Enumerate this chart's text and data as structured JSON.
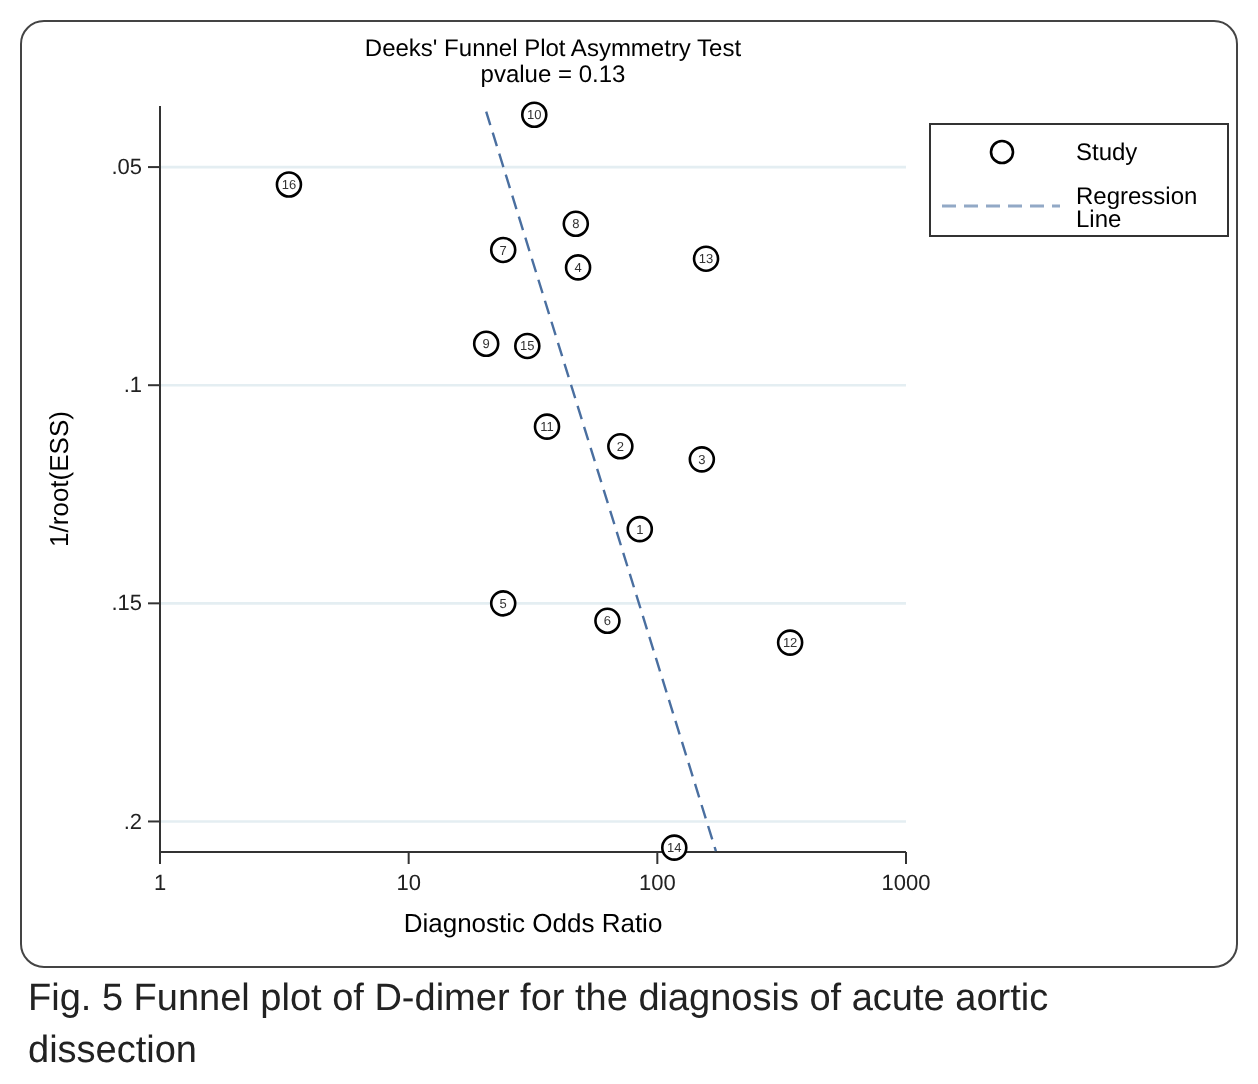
{
  "chart_data": {
    "type": "scatter",
    "title": "Deeks' Funnel Plot Asymmetry Test",
    "subtitle": "pvalue =  0.13",
    "xlabel": "Diagnostic Odds Ratio",
    "ylabel": "1/root(ESS)",
    "log": "x",
    "xlim": [
      1,
      1000
    ],
    "xticks": [
      1,
      10,
      100,
      1000
    ],
    "ylim": [
      0.207,
      0.036
    ],
    "yticks": [
      {
        "value": 0.05,
        "label": ".05"
      },
      {
        "value": 0.1,
        "label": ".1"
      },
      {
        "value": 0.15,
        "label": ".15"
      },
      {
        "value": 0.2,
        "label": ".2"
      }
    ],
    "grid": "y",
    "legend": "top right",
    "annotations": [
      "Fig. 5  Funnel plot of D-dimer for the diagnosis of acute aortic dissection",
      {
        "text": "1",
        "x": 85,
        "y": 0.133
      },
      {
        "text": "2",
        "x": 71,
        "y": 0.114
      },
      {
        "text": "3",
        "x": 151,
        "y": 0.117
      },
      {
        "text": "4",
        "x": 48,
        "y": 0.073
      },
      {
        "text": "5",
        "x": 24,
        "y": 0.15
      },
      {
        "text": "6",
        "x": 63,
        "y": 0.154
      },
      {
        "text": "7",
        "x": 24,
        "y": 0.069
      },
      {
        "text": "8",
        "x": 47,
        "y": 0.063
      },
      {
        "text": "9",
        "x": 20.5,
        "y": 0.0905
      },
      {
        "text": "10",
        "x": 32,
        "y": 0.038
      },
      {
        "text": "11",
        "x": 36,
        "y": 0.1095
      },
      {
        "text": "12",
        "x": 342,
        "y": 0.159
      },
      {
        "text": "13",
        "x": 157,
        "y": 0.071
      },
      {
        "text": "14",
        "x": 117,
        "y": 0.206
      },
      {
        "text": "15",
        "x": 30,
        "y": 0.091
      },
      {
        "text": "16",
        "x": 3.3,
        "y": 0.054
      }
    ],
    "series": [
      {
        "name": "Study",
        "type": "scatter",
        "color": "#000000",
        "marker": "circle",
        "x": [
          85,
          71,
          151,
          48,
          24,
          63,
          24,
          47,
          20.5,
          32,
          36,
          342,
          157,
          117,
          30,
          3.3
        ],
        "values": [
          0.133,
          0.114,
          0.117,
          0.073,
          0.15,
          0.154,
          0.069,
          0.063,
          0.0905,
          0.038,
          0.1095,
          0.159,
          0.071,
          0.206,
          0.091,
          0.054
        ]
      },
      {
        "name": "Regression Line",
        "type": "line",
        "color": "#4a6fa0",
        "line_style": "dashed",
        "x": [
          20.5,
          172
        ],
        "values": [
          0.0373,
          0.2068
        ]
      }
    ]
  }
}
